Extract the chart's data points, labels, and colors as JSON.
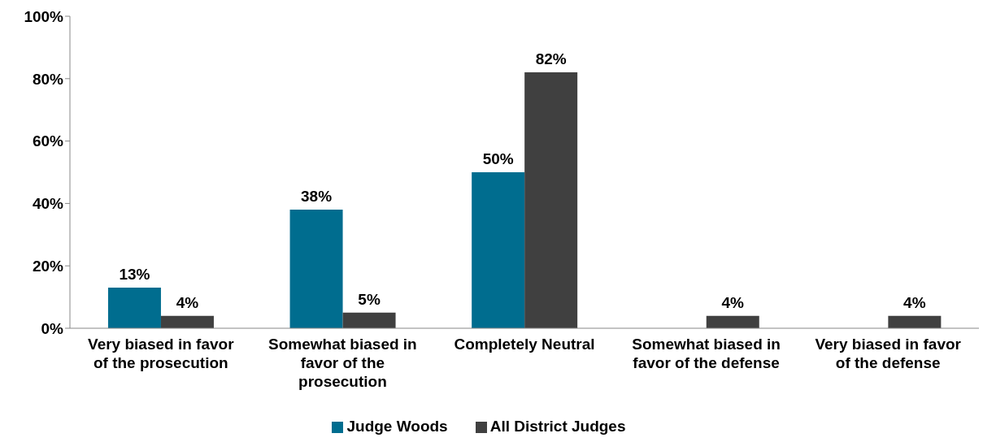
{
  "chart_data": {
    "type": "bar",
    "categories": [
      "Very biased in favor of the prosecution",
      "Somewhat biased in favor of the prosecution",
      "Completely Neutral",
      "Somewhat biased in favor of the defense",
      "Very biased in favor of the defense"
    ],
    "series": [
      {
        "name": "Judge Woods",
        "color": "#006d8f",
        "values": [
          13,
          38,
          50,
          0,
          0
        ],
        "value_labels": [
          "13%",
          "38%",
          "50%",
          null,
          null
        ]
      },
      {
        "name": "All District Judges",
        "color": "#404040",
        "values": [
          4,
          5,
          82,
          4,
          4
        ],
        "value_labels": [
          "4%",
          "5%",
          "82%",
          "4%",
          "4%"
        ]
      }
    ],
    "ylim": [
      0,
      100
    ],
    "yticks": [
      {
        "value": 0,
        "label": "0%"
      },
      {
        "value": 20,
        "label": "20%"
      },
      {
        "value": 40,
        "label": "40%"
      },
      {
        "value": 60,
        "label": "60%"
      },
      {
        "value": 80,
        "label": "80%"
      },
      {
        "value": 100,
        "label": "100%"
      }
    ],
    "grid": false,
    "legend": "bottom"
  }
}
